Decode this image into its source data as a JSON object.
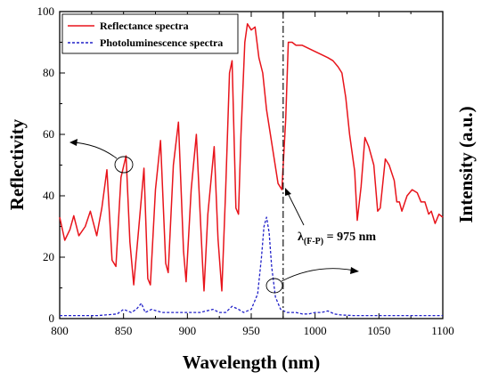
{
  "chart_data": {
    "type": "line",
    "title": "",
    "xlabel": "Wavelength (nm)",
    "ylabel": "Reflectivity",
    "y2label": "Intensity (a.u.)",
    "xlim": [
      800,
      1100
    ],
    "ylim": [
      0,
      100
    ],
    "x_ticks": [
      800,
      850,
      900,
      950,
      1000,
      1050,
      1100
    ],
    "y_ticks": [
      0,
      20,
      40,
      60,
      80,
      100
    ],
    "legend_position": "top-left",
    "annotation": {
      "label_main": "λ",
      "label_sub": "(F-P)",
      "label_rest": " = 975 nm",
      "wavelength": 975
    },
    "series": [
      {
        "name": "Reflectance spectra",
        "color": "#e8141b",
        "style": "solid",
        "points": [
          [
            800,
            33
          ],
          [
            804,
            25.5
          ],
          [
            808,
            29
          ],
          [
            811,
            33.5
          ],
          [
            815,
            27
          ],
          [
            820,
            30
          ],
          [
            824,
            35
          ],
          [
            829,
            27
          ],
          [
            833,
            36
          ],
          [
            837,
            48.5
          ],
          [
            841,
            19
          ],
          [
            844,
            17
          ],
          [
            848,
            46
          ],
          [
            852,
            53
          ],
          [
            855,
            25
          ],
          [
            858,
            11
          ],
          [
            862,
            30
          ],
          [
            866,
            49
          ],
          [
            869,
            13
          ],
          [
            871,
            11
          ],
          [
            875,
            42
          ],
          [
            879,
            58
          ],
          [
            883,
            18
          ],
          [
            885,
            15
          ],
          [
            889,
            50
          ],
          [
            893,
            64
          ],
          [
            897,
            22
          ],
          [
            899,
            12
          ],
          [
            903,
            42
          ],
          [
            907,
            60
          ],
          [
            912,
            17
          ],
          [
            913,
            9
          ],
          [
            916,
            34
          ],
          [
            921,
            56
          ],
          [
            924,
            26
          ],
          [
            927,
            9
          ],
          [
            930,
            42
          ],
          [
            933,
            80
          ],
          [
            935,
            84
          ],
          [
            938,
            36
          ],
          [
            940,
            34
          ],
          [
            942,
            60
          ],
          [
            945,
            90
          ],
          [
            947,
            96
          ],
          [
            950,
            94
          ],
          [
            953,
            95
          ],
          [
            956,
            85
          ],
          [
            959,
            80
          ],
          [
            962,
            68
          ],
          [
            965,
            60
          ],
          [
            968,
            52
          ],
          [
            971,
            44
          ],
          [
            974,
            42
          ],
          [
            977,
            65
          ],
          [
            979,
            90
          ],
          [
            982,
            90
          ],
          [
            985,
            89
          ],
          [
            990,
            89
          ],
          [
            995,
            88
          ],
          [
            1000,
            87
          ],
          [
            1005,
            86
          ],
          [
            1010,
            85
          ],
          [
            1014,
            84
          ],
          [
            1018,
            82
          ],
          [
            1021,
            80
          ],
          [
            1024,
            72
          ],
          [
            1027,
            60
          ],
          [
            1031,
            48
          ],
          [
            1033,
            32
          ],
          [
            1036,
            43
          ],
          [
            1039,
            59
          ],
          [
            1042,
            56
          ],
          [
            1046,
            50
          ],
          [
            1049,
            35
          ],
          [
            1051,
            36
          ],
          [
            1055,
            52
          ],
          [
            1058,
            50
          ],
          [
            1062,
            45
          ],
          [
            1064,
            38
          ],
          [
            1066,
            38
          ],
          [
            1068,
            35
          ],
          [
            1072,
            40
          ],
          [
            1076,
            42
          ],
          [
            1080,
            41
          ],
          [
            1083,
            38
          ],
          [
            1086,
            38
          ],
          [
            1089,
            34
          ],
          [
            1091,
            35
          ],
          [
            1094,
            31
          ],
          [
            1097,
            34
          ],
          [
            1100,
            33
          ]
        ]
      },
      {
        "name": "Photoluminescence spectra",
        "color": "#2020c8",
        "style": "dashed",
        "points": [
          [
            800,
            1
          ],
          [
            815,
            1
          ],
          [
            830,
            1
          ],
          [
            845,
            1.5
          ],
          [
            850,
            3
          ],
          [
            856,
            2
          ],
          [
            860,
            3
          ],
          [
            864,
            5
          ],
          [
            867,
            2
          ],
          [
            872,
            3
          ],
          [
            880,
            2
          ],
          [
            890,
            2
          ],
          [
            900,
            2
          ],
          [
            910,
            2
          ],
          [
            920,
            3
          ],
          [
            925,
            2
          ],
          [
            930,
            2
          ],
          [
            935,
            4
          ],
          [
            940,
            3
          ],
          [
            944,
            2
          ],
          [
            950,
            3
          ],
          [
            955,
            8
          ],
          [
            958,
            20
          ],
          [
            960,
            30
          ],
          [
            962,
            33
          ],
          [
            964,
            28
          ],
          [
            966,
            17
          ],
          [
            969,
            7
          ],
          [
            973,
            3
          ],
          [
            978,
            2
          ],
          [
            985,
            2
          ],
          [
            990,
            1.5
          ],
          [
            995,
            1.5
          ],
          [
            1000,
            2
          ],
          [
            1005,
            2
          ],
          [
            1010,
            2.5
          ],
          [
            1015,
            1.5
          ],
          [
            1020,
            1.2
          ],
          [
            1030,
            1
          ],
          [
            1050,
            1
          ],
          [
            1070,
            1
          ],
          [
            1085,
            1
          ],
          [
            1100,
            1
          ]
        ]
      }
    ]
  }
}
